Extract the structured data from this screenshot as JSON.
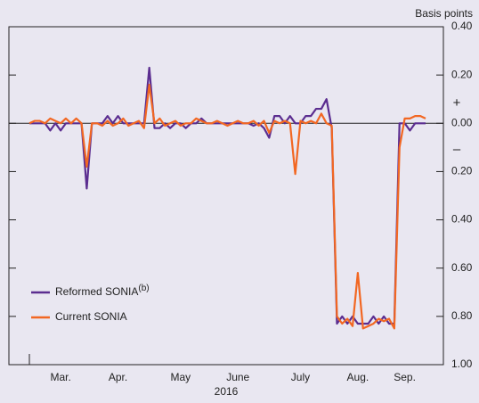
{
  "chart_data": {
    "type": "line",
    "y_unit": "Basis points",
    "plus_sign": "+",
    "minus_sign": "–",
    "x_label": "2016",
    "categories": [
      null,
      null,
      null,
      null,
      null,
      null,
      "Mar.",
      null,
      null,
      null,
      null,
      null,
      null,
      null,
      null,
      null,
      null,
      "Apr.",
      null,
      null,
      null,
      null,
      null,
      null,
      null,
      null,
      null,
      null,
      null,
      "May",
      null,
      null,
      null,
      null,
      null,
      null,
      null,
      null,
      null,
      null,
      "June",
      null,
      null,
      null,
      null,
      null,
      null,
      null,
      null,
      null,
      null,
      null,
      "July",
      null,
      null,
      null,
      null,
      null,
      null,
      null,
      null,
      null,
      null,
      "Aug.",
      null,
      null,
      null,
      null,
      null,
      null,
      null,
      null,
      "Sep.",
      null,
      null,
      null,
      null
    ],
    "series": [
      {
        "name": "Reformed SONIA",
        "superscript": "(b)",
        "color": "#5b2d90",
        "values": [
          0,
          0,
          0,
          0,
          -0.03,
          0,
          -0.03,
          0,
          0,
          0,
          0,
          -0.27,
          0,
          0,
          0,
          0.03,
          0,
          0.03,
          0,
          0,
          0,
          0,
          0,
          0.23,
          -0.02,
          -0.02,
          0,
          -0.02,
          0,
          0,
          -0.02,
          0,
          0,
          0.02,
          0,
          0,
          0,
          0,
          0,
          0,
          0,
          0,
          0,
          -0.01,
          0,
          -0.02,
          -0.06,
          0.03,
          0.03,
          0,
          0.03,
          0,
          0,
          0.03,
          0.03,
          0.06,
          0.06,
          0.1,
          -0.02,
          -0.83,
          -0.8,
          -0.83,
          -0.8,
          -0.83,
          -0.83,
          -0.83,
          -0.8,
          -0.83,
          -0.8,
          -0.83,
          -0.83,
          0,
          0,
          -0.03,
          0,
          0,
          0
        ]
      },
      {
        "name": "Current SONIA",
        "color": "#f26722",
        "values": [
          0,
          0.01,
          0.01,
          0,
          0.02,
          0.01,
          0,
          0.02,
          0,
          0.02,
          0,
          -0.18,
          0,
          0,
          -0.01,
          0.01,
          -0.01,
          0,
          0.02,
          -0.01,
          0,
          0.01,
          -0.02,
          0.16,
          0,
          0.02,
          -0.01,
          0,
          0.01,
          -0.01,
          0,
          0,
          0.02,
          0.01,
          0,
          0,
          0.01,
          0,
          -0.01,
          0,
          0.01,
          0,
          0,
          0.01,
          -0.01,
          0.01,
          -0.04,
          0.01,
          0,
          0.01,
          0,
          -0.21,
          0.01,
          0,
          0.01,
          0,
          0.04,
          0,
          -0.01,
          -0.8,
          -0.83,
          -0.81,
          -0.84,
          -0.62,
          -0.85,
          -0.84,
          -0.83,
          -0.81,
          -0.82,
          -0.81,
          -0.85,
          -0.1,
          0.02,
          0.02,
          0.03,
          0.03,
          0.02
        ]
      }
    ],
    "ylim": [
      -1.0,
      0.4
    ],
    "yticks": [
      {
        "value": -1.0,
        "label": "1.00"
      },
      {
        "value": -0.8,
        "label": "0.80"
      },
      {
        "value": -0.6,
        "label": "0.60"
      },
      {
        "value": -0.4,
        "label": "0.40"
      },
      {
        "value": -0.2,
        "label": "0.20"
      },
      {
        "value": 0,
        "label": "0.00"
      },
      {
        "value": 0.2,
        "label": "0.20"
      },
      {
        "value": 0.4,
        "label": "0.40"
      }
    ],
    "zero_line": true,
    "legend": "lower left"
  }
}
